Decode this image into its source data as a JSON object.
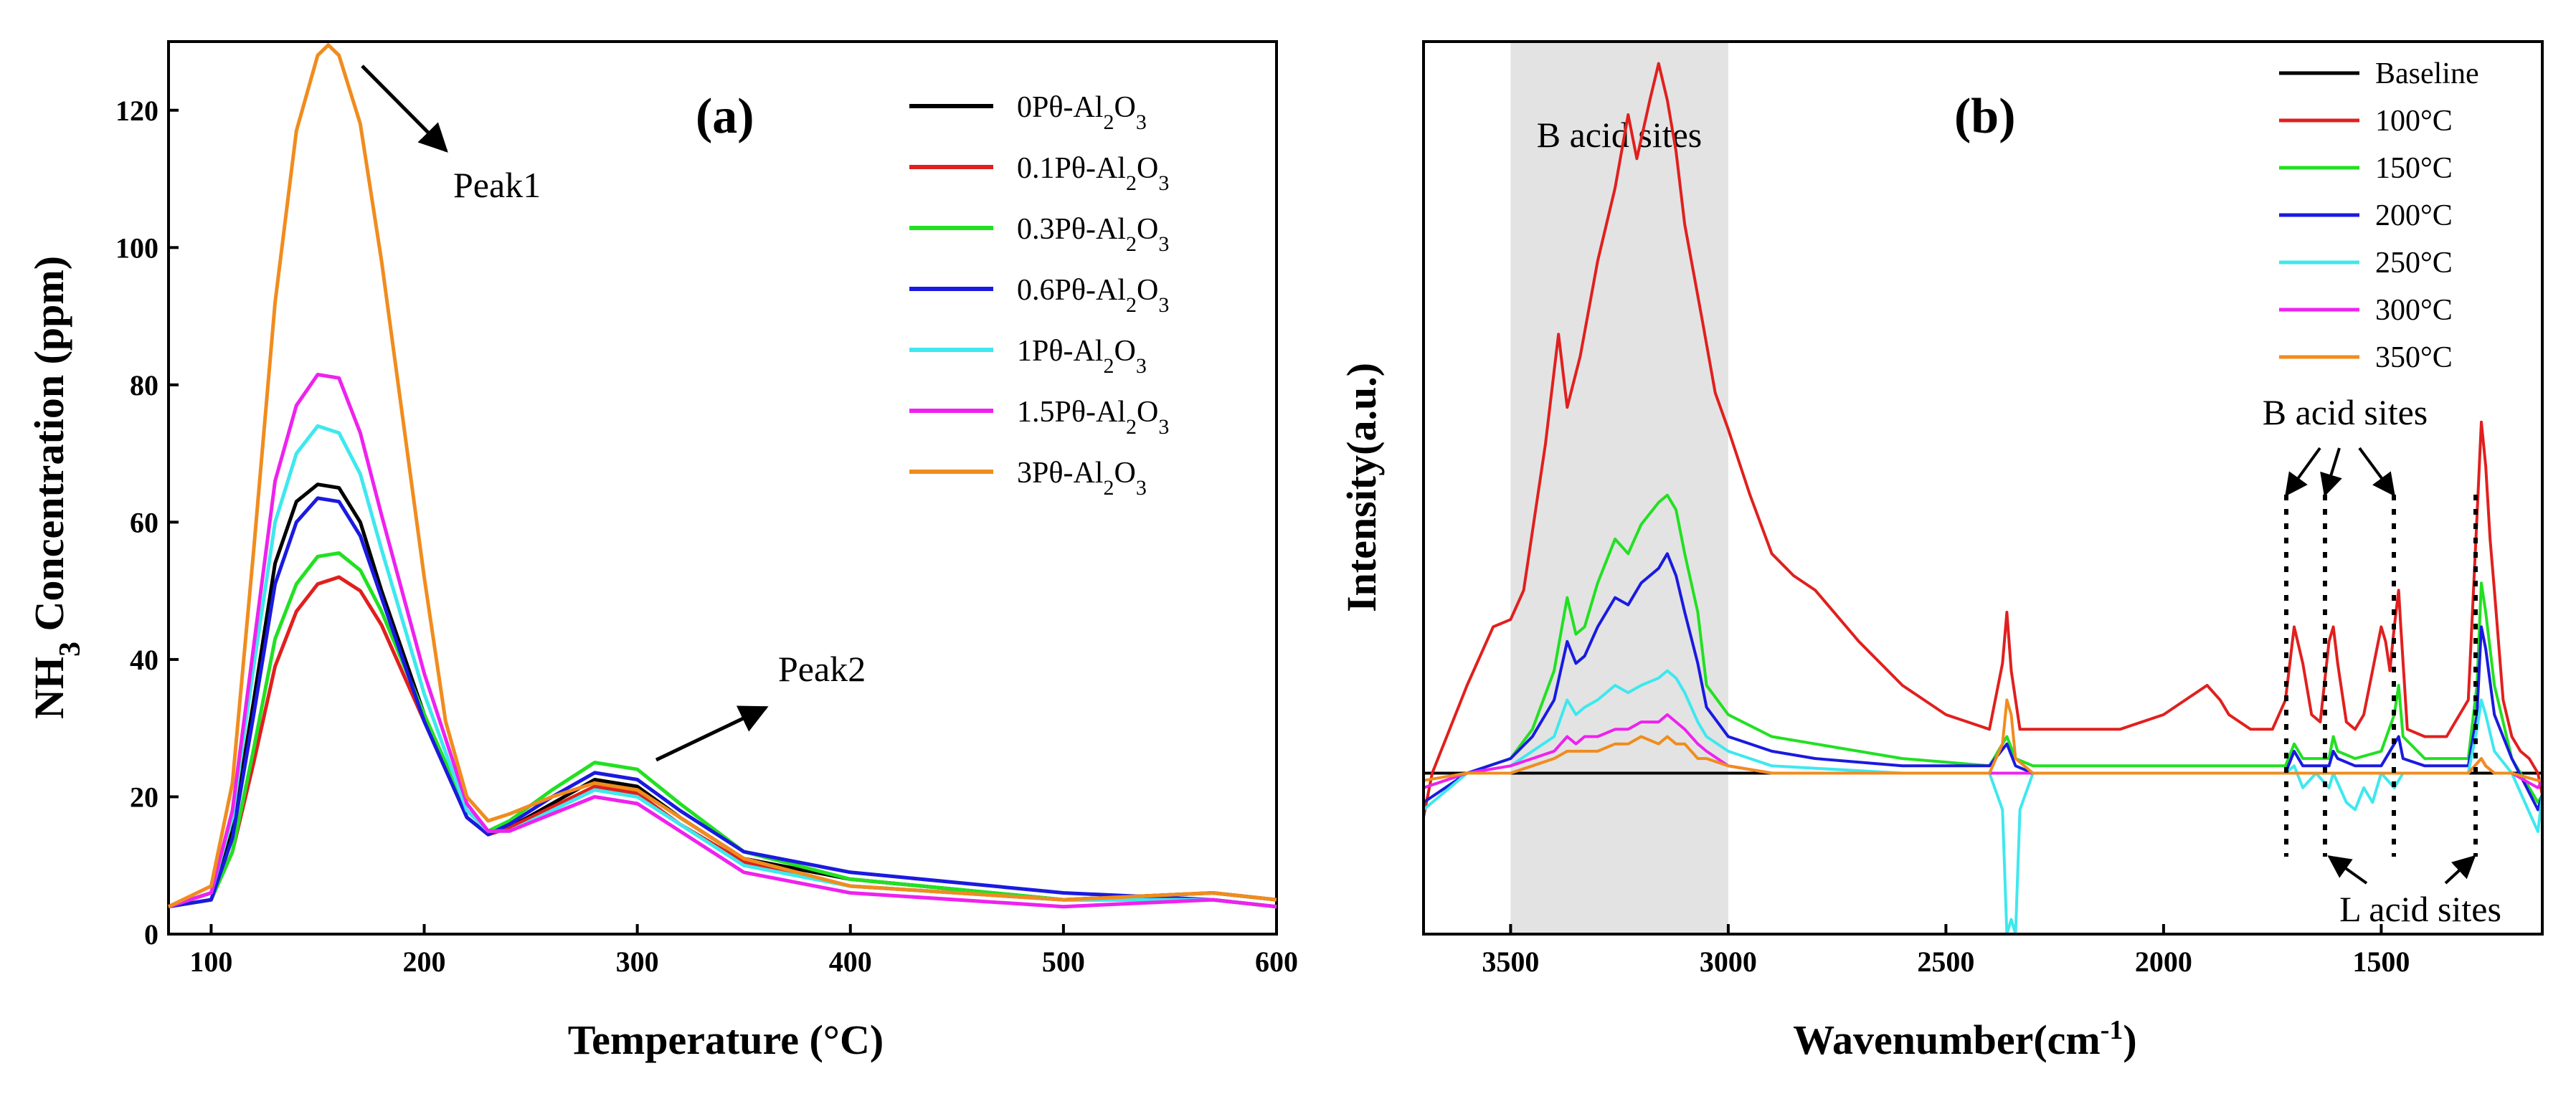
{
  "chart_data": [
    {
      "type": "line",
      "panel_label": "(a)",
      "xlabel": "Temperature (°C)",
      "ylabel": "NH3 Concentration (ppm)",
      "xlim": [
        80,
        600
      ],
      "ylim": [
        0,
        130
      ],
      "xticks": [
        100,
        200,
        300,
        400,
        500,
        600
      ],
      "yticks": [
        0,
        20,
        40,
        60,
        80,
        100,
        120
      ],
      "legend_position": "top-right",
      "annotations": [
        "Peak1",
        "Peak2"
      ],
      "series": [
        {
          "name": "0Pθ-Al2O3",
          "label_prefix": "0Pθ-Al",
          "color": "#000000",
          "x": [
            80,
            100,
            110,
            120,
            130,
            140,
            150,
            160,
            170,
            180,
            200,
            220,
            230,
            240,
            260,
            280,
            300,
            320,
            350,
            400,
            500,
            570,
            600
          ],
          "y": [
            4,
            6,
            15,
            34,
            54,
            63,
            65.5,
            65,
            60,
            50,
            32,
            17,
            14.5,
            15.5,
            19,
            22.5,
            21.5,
            17,
            11,
            8,
            5,
            6,
            5
          ]
        },
        {
          "name": "0.1Pθ-Al2O3",
          "label_prefix": "0.1Pθ-Al",
          "color": "#e0201e",
          "x": [
            80,
            100,
            110,
            120,
            130,
            140,
            150,
            160,
            170,
            180,
            200,
            220,
            230,
            240,
            260,
            280,
            300,
            320,
            350,
            400,
            500,
            570,
            600
          ],
          "y": [
            4,
            5,
            12,
            25,
            39,
            47,
            51,
            52,
            50,
            45,
            31,
            17,
            14.5,
            15.5,
            18.5,
            21.5,
            20.5,
            16,
            10.5,
            7,
            5,
            5,
            4
          ]
        },
        {
          "name": "0.3Pθ-Al2O3",
          "label_prefix": "0.3Pθ-Al",
          "color": "#22e022",
          "x": [
            80,
            100,
            110,
            120,
            130,
            140,
            150,
            160,
            170,
            180,
            200,
            220,
            230,
            240,
            260,
            280,
            300,
            320,
            350,
            400,
            500,
            570,
            600
          ],
          "y": [
            4,
            5,
            12,
            27,
            43,
            51,
            55,
            55.5,
            53,
            47,
            32,
            18,
            15,
            16.5,
            21,
            25,
            24,
            19,
            12,
            8,
            5,
            5,
            4
          ]
        },
        {
          "name": "0.6Pθ-Al2O3",
          "label_prefix": "0.6Pθ-Al",
          "color": "#1a1ae0",
          "x": [
            80,
            100,
            110,
            120,
            130,
            140,
            150,
            160,
            170,
            180,
            200,
            220,
            230,
            240,
            260,
            280,
            300,
            320,
            350,
            400,
            500,
            570,
            600
          ],
          "y": [
            4,
            5,
            14,
            32,
            51,
            60,
            63.5,
            63,
            58,
            49,
            31,
            17,
            14.5,
            16,
            20,
            23.5,
            22.5,
            18,
            12,
            9,
            6,
            5,
            4
          ]
        },
        {
          "name": "1Pθ-Al2O3",
          "label_prefix": "1Pθ-Al",
          "color": "#3ee8ee",
          "x": [
            80,
            100,
            110,
            120,
            130,
            140,
            150,
            160,
            170,
            180,
            200,
            220,
            230,
            240,
            260,
            280,
            300,
            320,
            350,
            400,
            500,
            570,
            600
          ],
          "y": [
            4,
            6,
            17,
            39,
            60,
            70,
            74,
            73,
            67,
            56,
            35,
            18,
            15,
            15,
            18,
            21,
            20,
            16,
            10,
            7,
            5,
            5,
            4
          ]
        },
        {
          "name": "1.5Pθ-Al2O3",
          "label_prefix": "1.5Pθ-Al",
          "color": "#ee22ee",
          "x": [
            80,
            100,
            110,
            120,
            130,
            140,
            150,
            160,
            170,
            180,
            200,
            220,
            230,
            240,
            260,
            280,
            300,
            320,
            350,
            400,
            500,
            570,
            600
          ],
          "y": [
            4,
            6,
            18,
            42,
            66,
            77,
            81.5,
            81,
            73,
            61,
            38,
            19,
            15,
            15,
            17.5,
            20,
            19,
            15,
            9,
            6,
            4,
            5,
            4
          ]
        },
        {
          "name": "3Pθ-Al2O3",
          "label_prefix": "3Pθ-Al",
          "color": "#f08c1e",
          "x": [
            80,
            100,
            110,
            120,
            130,
            140,
            150,
            155,
            160,
            170,
            180,
            200,
            210,
            220,
            230,
            240,
            260,
            280,
            300,
            320,
            350,
            400,
            500,
            570,
            600
          ],
          "y": [
            4,
            7,
            22,
            56,
            92,
            117,
            128,
            129.5,
            128,
            118,
            98,
            52,
            31,
            20,
            16.5,
            17.5,
            20,
            22,
            21,
            17,
            11,
            7,
            5,
            6,
            5
          ]
        }
      ]
    },
    {
      "type": "line",
      "panel_label": "(b)",
      "xlabel": "Wavenumber(cm-1)",
      "ylabel": "Intensity(a.u.)",
      "xlim": [
        3700,
        1130
      ],
      "ylim": [
        -0.22,
        1.0
      ],
      "xticks": [
        3500,
        3000,
        2500,
        2000,
        1500
      ],
      "shaded_region": {
        "from": 3500,
        "to": 3000,
        "label": "B acid sites"
      },
      "annotations": [
        "B acid sites",
        "L acid sites"
      ],
      "legend_position": "top-right",
      "series": [
        {
          "name": "Baseline",
          "color": "#000000",
          "x": [
            3700,
            1130
          ],
          "y": [
            0,
            0
          ]
        },
        {
          "name": "100°C",
          "color": "#e0201e",
          "x": [
            3700,
            3680,
            3600,
            3540,
            3500,
            3470,
            3420,
            3390,
            3370,
            3340,
            3300,
            3260,
            3230,
            3210,
            3180,
            3160,
            3140,
            3120,
            3100,
            3060,
            3030,
            3000,
            2950,
            2900,
            2850,
            2800,
            2700,
            2600,
            2500,
            2400,
            2370,
            2360,
            2350,
            2330,
            2300,
            2200,
            2100,
            2000,
            1950,
            1900,
            1870,
            1850,
            1800,
            1750,
            1720,
            1700,
            1680,
            1660,
            1640,
            1620,
            1610,
            1600,
            1580,
            1560,
            1540,
            1500,
            1490,
            1480,
            1470,
            1460,
            1455,
            1440,
            1400,
            1350,
            1300,
            1280,
            1270,
            1260,
            1250,
            1240,
            1220,
            1200,
            1180,
            1160,
            1140,
            1130
          ],
          "y": [
            -0.06,
            0.0,
            0.12,
            0.2,
            0.21,
            0.25,
            0.45,
            0.6,
            0.5,
            0.57,
            0.7,
            0.8,
            0.9,
            0.84,
            0.92,
            0.97,
            0.92,
            0.85,
            0.75,
            0.62,
            0.52,
            0.47,
            0.38,
            0.3,
            0.27,
            0.25,
            0.18,
            0.12,
            0.08,
            0.06,
            0.15,
            0.22,
            0.14,
            0.06,
            0.06,
            0.06,
            0.06,
            0.08,
            0.1,
            0.12,
            0.1,
            0.08,
            0.06,
            0.06,
            0.1,
            0.2,
            0.15,
            0.08,
            0.07,
            0.18,
            0.2,
            0.15,
            0.07,
            0.06,
            0.08,
            0.2,
            0.18,
            0.14,
            0.2,
            0.25,
            0.2,
            0.06,
            0.05,
            0.05,
            0.1,
            0.35,
            0.48,
            0.42,
            0.32,
            0.25,
            0.1,
            0.05,
            0.03,
            0.02,
            0.0,
            -0.03
          ]
        },
        {
          "name": "150°C",
          "color": "#22e022",
          "x": [
            3700,
            3600,
            3500,
            3450,
            3400,
            3370,
            3350,
            3330,
            3300,
            3260,
            3230,
            3200,
            3160,
            3140,
            3120,
            3100,
            3070,
            3050,
            3000,
            2900,
            2800,
            2600,
            2400,
            2360,
            2340,
            2300,
            2000,
            1720,
            1700,
            1680,
            1620,
            1610,
            1600,
            1560,
            1500,
            1470,
            1460,
            1450,
            1400,
            1300,
            1280,
            1270,
            1260,
            1240,
            1200,
            1140,
            1130
          ],
          "y": [
            -0.02,
            0.0,
            0.02,
            0.06,
            0.14,
            0.24,
            0.19,
            0.2,
            0.26,
            0.32,
            0.3,
            0.34,
            0.37,
            0.38,
            0.36,
            0.3,
            0.22,
            0.12,
            0.08,
            0.05,
            0.04,
            0.02,
            0.01,
            0.05,
            0.02,
            0.01,
            0.01,
            0.01,
            0.04,
            0.02,
            0.02,
            0.05,
            0.03,
            0.02,
            0.03,
            0.08,
            0.12,
            0.05,
            0.02,
            0.02,
            0.12,
            0.26,
            0.22,
            0.12,
            0.02,
            -0.04,
            -0.03
          ]
        },
        {
          "name": "200°C",
          "color": "#1a1ae0",
          "x": [
            3700,
            3600,
            3500,
            3450,
            3400,
            3370,
            3350,
            3330,
            3300,
            3260,
            3230,
            3200,
            3160,
            3140,
            3120,
            3100,
            3070,
            3050,
            3000,
            2900,
            2800,
            2600,
            2400,
            2360,
            2340,
            2300,
            2000,
            1720,
            1700,
            1680,
            1620,
            1610,
            1600,
            1560,
            1500,
            1470,
            1460,
            1450,
            1400,
            1300,
            1280,
            1270,
            1260,
            1240,
            1200,
            1140,
            1130
          ],
          "y": [
            -0.04,
            0.0,
            0.02,
            0.05,
            0.1,
            0.18,
            0.15,
            0.16,
            0.2,
            0.24,
            0.23,
            0.26,
            0.28,
            0.3,
            0.27,
            0.22,
            0.15,
            0.09,
            0.05,
            0.03,
            0.02,
            0.01,
            0.01,
            0.04,
            0.01,
            0.0,
            0.0,
            0.0,
            0.03,
            0.01,
            0.01,
            0.03,
            0.02,
            0.01,
            0.01,
            0.04,
            0.05,
            0.02,
            0.01,
            0.01,
            0.08,
            0.2,
            0.17,
            0.08,
            0.02,
            -0.05,
            -0.03
          ]
        },
        {
          "name": "250°C",
          "color": "#3ee8ee",
          "x": [
            3700,
            3600,
            3500,
            3450,
            3400,
            3370,
            3350,
            3330,
            3300,
            3260,
            3230,
            3200,
            3160,
            3140,
            3120,
            3100,
            3070,
            3050,
            3000,
            2900,
            2600,
            2400,
            2370,
            2360,
            2350,
            2340,
            2330,
            2300,
            2000,
            1720,
            1700,
            1680,
            1650,
            1620,
            1610,
            1580,
            1560,
            1540,
            1520,
            1500,
            1470,
            1450,
            1400,
            1300,
            1280,
            1270,
            1260,
            1240,
            1200,
            1140,
            1130
          ],
          "y": [
            -0.05,
            0.0,
            0.01,
            0.03,
            0.05,
            0.1,
            0.08,
            0.09,
            0.1,
            0.12,
            0.11,
            0.12,
            0.13,
            0.14,
            0.13,
            0.11,
            0.07,
            0.05,
            0.03,
            0.01,
            0.0,
            0.0,
            -0.05,
            -0.22,
            -0.2,
            -0.22,
            -0.05,
            0.0,
            0.0,
            0.0,
            0.01,
            -0.02,
            0.0,
            -0.02,
            0.0,
            -0.04,
            -0.05,
            -0.02,
            -0.04,
            0.0,
            -0.02,
            0.0,
            0.0,
            0.0,
            0.06,
            0.1,
            0.08,
            0.03,
            0.0,
            -0.08,
            -0.03
          ]
        },
        {
          "name": "300°C",
          "color": "#ee22ee",
          "x": [
            3700,
            3600,
            3500,
            3450,
            3400,
            3370,
            3350,
            3330,
            3300,
            3260,
            3230,
            3200,
            3160,
            3140,
            3120,
            3100,
            3070,
            3050,
            3000,
            2900,
            2600,
            2400,
            2000,
            1700,
            1600,
            1470,
            1400,
            1300,
            1270,
            1260,
            1240,
            1200,
            1140,
            1130
          ],
          "y": [
            -0.02,
            0.0,
            0.01,
            0.02,
            0.03,
            0.05,
            0.04,
            0.05,
            0.05,
            0.06,
            0.06,
            0.07,
            0.07,
            0.08,
            0.07,
            0.06,
            0.04,
            0.03,
            0.01,
            0.0,
            0.0,
            0.0,
            0.0,
            0.0,
            0.0,
            0.0,
            0.0,
            0.0,
            0.02,
            0.01,
            0.0,
            0.0,
            -0.02,
            -0.01
          ]
        },
        {
          "name": "350°C",
          "color": "#f08c1e",
          "x": [
            3700,
            3600,
            3500,
            3450,
            3400,
            3370,
            3350,
            3330,
            3300,
            3260,
            3230,
            3200,
            3160,
            3140,
            3120,
            3100,
            3070,
            3050,
            3000,
            2900,
            2600,
            2400,
            2370,
            2360,
            2350,
            2340,
            2300,
            2000,
            1700,
            1470,
            1300,
            1270,
            1260,
            1240,
            1200,
            1140,
            1130
          ],
          "y": [
            -0.01,
            0.0,
            0.0,
            0.01,
            0.02,
            0.03,
            0.03,
            0.03,
            0.03,
            0.04,
            0.04,
            0.05,
            0.04,
            0.05,
            0.04,
            0.04,
            0.02,
            0.02,
            0.01,
            0.0,
            0.0,
            0.0,
            0.04,
            0.1,
            0.08,
            0.02,
            0.0,
            0.0,
            0.0,
            0.0,
            0.0,
            0.02,
            0.01,
            0.0,
            0.0,
            -0.01,
            -0.01
          ]
        }
      ]
    }
  ]
}
